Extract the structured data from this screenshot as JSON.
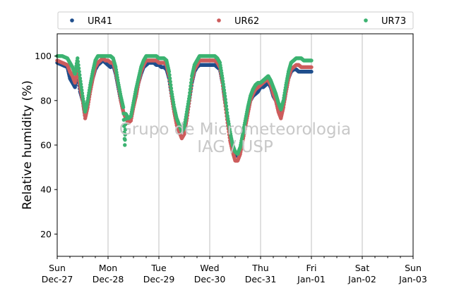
{
  "chart_data": {
    "type": "scatter",
    "ylabel": "Relative humidity (%)",
    "ylim": [
      10,
      110
    ],
    "yticks": [
      20,
      40,
      60,
      80,
      100
    ],
    "xlim_days": [
      0,
      7
    ],
    "xticks": [
      {
        "day": 0,
        "line1": "Sun",
        "line2": "Dec-27"
      },
      {
        "day": 1,
        "line1": "Mon",
        "line2": "Dec-28"
      },
      {
        "day": 2,
        "line1": "Tue",
        "line2": "Dec-29"
      },
      {
        "day": 3,
        "line1": "Wed",
        "line2": "Dec-30"
      },
      {
        "day": 4,
        "line1": "Thu",
        "line2": "Dec-31"
      },
      {
        "day": 5,
        "line1": "Fri",
        "line2": "Jan-01"
      },
      {
        "day": 6,
        "line1": "Sat",
        "line2": "Jan-02"
      },
      {
        "day": 7,
        "line1": "Sun",
        "line2": "Jan-03"
      }
    ],
    "grid": "x-major",
    "legend_placement": "top",
    "watermark": [
      "Grupo de Micrometeorologia",
      "IAG / USP"
    ],
    "series": [
      {
        "name": "UR41",
        "color": "#1f4e8c",
        "points": [
          [
            0,
            97
          ],
          [
            0.1,
            96
          ],
          [
            0.2,
            95
          ],
          [
            0.25,
            90
          ],
          [
            0.3,
            88
          ],
          [
            0.35,
            86
          ],
          [
            0.4,
            92
          ],
          [
            0.45,
            84
          ],
          [
            0.5,
            80
          ],
          [
            0.55,
            73
          ],
          [
            0.6,
            78
          ],
          [
            0.65,
            85
          ],
          [
            0.7,
            90
          ],
          [
            0.75,
            94
          ],
          [
            0.8,
            96
          ],
          [
            0.85,
            97
          ],
          [
            0.9,
            98
          ],
          [
            0.95,
            97
          ],
          [
            1.0,
            96
          ],
          [
            1.05,
            95
          ],
          [
            1.1,
            96
          ],
          [
            1.15,
            92
          ],
          [
            1.2,
            86
          ],
          [
            1.25,
            80
          ],
          [
            1.3,
            75
          ],
          [
            1.35,
            72
          ],
          [
            1.4,
            71
          ],
          [
            1.45,
            72
          ],
          [
            1.5,
            78
          ],
          [
            1.55,
            82
          ],
          [
            1.6,
            88
          ],
          [
            1.65,
            92
          ],
          [
            1.7,
            95
          ],
          [
            1.75,
            96
          ],
          [
            1.8,
            97
          ],
          [
            1.85,
            97
          ],
          [
            1.9,
            97
          ],
          [
            1.95,
            96
          ],
          [
            2.0,
            96
          ],
          [
            2.05,
            95
          ],
          [
            2.1,
            95
          ],
          [
            2.15,
            94
          ],
          [
            2.2,
            90
          ],
          [
            2.25,
            82
          ],
          [
            2.3,
            75
          ],
          [
            2.35,
            70
          ],
          [
            2.4,
            68
          ],
          [
            2.45,
            65
          ],
          [
            2.5,
            66
          ],
          [
            2.55,
            72
          ],
          [
            2.6,
            80
          ],
          [
            2.65,
            88
          ],
          [
            2.7,
            93
          ],
          [
            2.75,
            95
          ],
          [
            2.8,
            96
          ],
          [
            2.85,
            96
          ],
          [
            2.9,
            96
          ],
          [
            2.95,
            96
          ],
          [
            3.0,
            96
          ],
          [
            3.05,
            96
          ],
          [
            3.1,
            96
          ],
          [
            3.15,
            95
          ],
          [
            3.2,
            94
          ],
          [
            3.25,
            88
          ],
          [
            3.3,
            80
          ],
          [
            3.35,
            72
          ],
          [
            3.4,
            65
          ],
          [
            3.45,
            60
          ],
          [
            3.5,
            56
          ],
          [
            3.55,
            55
          ],
          [
            3.6,
            58
          ],
          [
            3.65,
            64
          ],
          [
            3.7,
            70
          ],
          [
            3.75,
            75
          ],
          [
            3.8,
            80
          ],
          [
            3.85,
            82
          ],
          [
            3.9,
            83
          ],
          [
            3.95,
            84
          ],
          [
            4.0,
            86
          ],
          [
            4.05,
            86
          ],
          [
            4.1,
            87
          ],
          [
            4.15,
            88
          ],
          [
            4.2,
            86
          ],
          [
            4.25,
            82
          ],
          [
            4.3,
            80
          ],
          [
            4.35,
            76
          ],
          [
            4.4,
            74
          ],
          [
            4.45,
            78
          ],
          [
            4.5,
            84
          ],
          [
            4.55,
            90
          ],
          [
            4.6,
            93
          ],
          [
            4.65,
            94
          ],
          [
            4.7,
            94
          ],
          [
            4.75,
            93
          ],
          [
            4.8,
            93
          ],
          [
            4.85,
            93
          ],
          [
            4.9,
            93
          ],
          [
            4.95,
            93
          ],
          [
            5.0,
            93
          ]
        ]
      },
      {
        "name": "UR62",
        "color": "#cd5c5c",
        "points": [
          [
            0,
            98
          ],
          [
            0.1,
            97
          ],
          [
            0.2,
            96
          ],
          [
            0.25,
            93
          ],
          [
            0.3,
            91
          ],
          [
            0.35,
            88
          ],
          [
            0.4,
            94
          ],
          [
            0.45,
            86
          ],
          [
            0.5,
            80
          ],
          [
            0.55,
            72
          ],
          [
            0.6,
            77
          ],
          [
            0.65,
            84
          ],
          [
            0.7,
            90
          ],
          [
            0.75,
            95
          ],
          [
            0.8,
            97
          ],
          [
            0.85,
            98
          ],
          [
            0.9,
            99
          ],
          [
            0.95,
            98
          ],
          [
            1.0,
            98
          ],
          [
            1.05,
            97
          ],
          [
            1.1,
            97
          ],
          [
            1.15,
            93
          ],
          [
            1.2,
            87
          ],
          [
            1.25,
            80
          ],
          [
            1.3,
            75
          ],
          [
            1.35,
            72
          ],
          [
            1.4,
            70
          ],
          [
            1.45,
            71
          ],
          [
            1.5,
            77
          ],
          [
            1.55,
            82
          ],
          [
            1.6,
            88
          ],
          [
            1.65,
            93
          ],
          [
            1.7,
            96
          ],
          [
            1.75,
            98
          ],
          [
            1.8,
            98
          ],
          [
            1.85,
            98
          ],
          [
            1.9,
            98
          ],
          [
            1.95,
            98
          ],
          [
            2.0,
            97
          ],
          [
            2.05,
            97
          ],
          [
            2.1,
            97
          ],
          [
            2.15,
            96
          ],
          [
            2.2,
            91
          ],
          [
            2.25,
            82
          ],
          [
            2.3,
            75
          ],
          [
            2.35,
            69
          ],
          [
            2.4,
            66
          ],
          [
            2.45,
            63
          ],
          [
            2.5,
            65
          ],
          [
            2.55,
            72
          ],
          [
            2.6,
            80
          ],
          [
            2.65,
            89
          ],
          [
            2.7,
            94
          ],
          [
            2.75,
            96
          ],
          [
            2.8,
            98
          ],
          [
            2.85,
            98
          ],
          [
            2.9,
            98
          ],
          [
            2.95,
            98
          ],
          [
            3.0,
            98
          ],
          [
            3.05,
            98
          ],
          [
            3.1,
            98
          ],
          [
            3.15,
            97
          ],
          [
            3.2,
            95
          ],
          [
            3.25,
            88
          ],
          [
            3.3,
            79
          ],
          [
            3.35,
            70
          ],
          [
            3.4,
            62
          ],
          [
            3.45,
            57
          ],
          [
            3.5,
            53
          ],
          [
            3.55,
            53
          ],
          [
            3.6,
            56
          ],
          [
            3.65,
            62
          ],
          [
            3.7,
            68
          ],
          [
            3.75,
            74
          ],
          [
            3.8,
            80
          ],
          [
            3.85,
            83
          ],
          [
            3.9,
            85
          ],
          [
            3.95,
            86
          ],
          [
            4.0,
            87
          ],
          [
            4.05,
            88
          ],
          [
            4.1,
            89
          ],
          [
            4.15,
            89
          ],
          [
            4.2,
            87
          ],
          [
            4.25,
            83
          ],
          [
            4.3,
            80
          ],
          [
            4.35,
            75
          ],
          [
            4.4,
            72
          ],
          [
            4.45,
            77
          ],
          [
            4.5,
            84
          ],
          [
            4.55,
            90
          ],
          [
            4.6,
            94
          ],
          [
            4.65,
            95
          ],
          [
            4.7,
            96
          ],
          [
            4.75,
            96
          ],
          [
            4.8,
            95
          ],
          [
            4.85,
            95
          ],
          [
            4.9,
            95
          ],
          [
            4.95,
            95
          ],
          [
            5.0,
            95
          ]
        ]
      },
      {
        "name": "UR73",
        "color": "#3cb371",
        "points": [
          [
            0,
            100
          ],
          [
            0.1,
            100
          ],
          [
            0.2,
            99
          ],
          [
            0.25,
            97
          ],
          [
            0.3,
            95
          ],
          [
            0.35,
            92
          ],
          [
            0.4,
            99
          ],
          [
            0.45,
            90
          ],
          [
            0.5,
            82
          ],
          [
            0.55,
            75
          ],
          [
            0.6,
            80
          ],
          [
            0.65,
            87
          ],
          [
            0.7,
            93
          ],
          [
            0.75,
            98
          ],
          [
            0.8,
            100
          ],
          [
            0.85,
            100
          ],
          [
            0.9,
            100
          ],
          [
            0.95,
            100
          ],
          [
            1.0,
            100
          ],
          [
            1.05,
            100
          ],
          [
            1.1,
            99
          ],
          [
            1.15,
            95
          ],
          [
            1.2,
            88
          ],
          [
            1.25,
            82
          ],
          [
            1.3,
            77
          ],
          [
            1.33,
            60
          ],
          [
            1.35,
            74
          ],
          [
            1.4,
            72
          ],
          [
            1.45,
            73
          ],
          [
            1.5,
            79
          ],
          [
            1.55,
            85
          ],
          [
            1.6,
            90
          ],
          [
            1.65,
            95
          ],
          [
            1.7,
            98
          ],
          [
            1.75,
            100
          ],
          [
            1.8,
            100
          ],
          [
            1.85,
            100
          ],
          [
            1.9,
            100
          ],
          [
            1.95,
            100
          ],
          [
            2.0,
            99
          ],
          [
            2.05,
            99
          ],
          [
            2.1,
            99
          ],
          [
            2.15,
            98
          ],
          [
            2.2,
            93
          ],
          [
            2.25,
            84
          ],
          [
            2.3,
            77
          ],
          [
            2.35,
            72
          ],
          [
            2.4,
            69
          ],
          [
            2.45,
            66
          ],
          [
            2.5,
            68
          ],
          [
            2.55,
            75
          ],
          [
            2.6,
            82
          ],
          [
            2.65,
            91
          ],
          [
            2.7,
            96
          ],
          [
            2.75,
            98
          ],
          [
            2.8,
            100
          ],
          [
            2.85,
            100
          ],
          [
            2.9,
            100
          ],
          [
            2.95,
            100
          ],
          [
            3.0,
            100
          ],
          [
            3.05,
            100
          ],
          [
            3.1,
            100
          ],
          [
            3.15,
            99
          ],
          [
            3.2,
            97
          ],
          [
            3.25,
            90
          ],
          [
            3.3,
            82
          ],
          [
            3.35,
            73
          ],
          [
            3.4,
            66
          ],
          [
            3.45,
            60
          ],
          [
            3.5,
            57
          ],
          [
            3.55,
            56
          ],
          [
            3.6,
            59
          ],
          [
            3.65,
            65
          ],
          [
            3.7,
            71
          ],
          [
            3.75,
            77
          ],
          [
            3.8,
            82
          ],
          [
            3.85,
            85
          ],
          [
            3.9,
            87
          ],
          [
            3.95,
            88
          ],
          [
            4.0,
            88
          ],
          [
            4.05,
            89
          ],
          [
            4.1,
            90
          ],
          [
            4.15,
            91
          ],
          [
            4.2,
            89
          ],
          [
            4.25,
            86
          ],
          [
            4.3,
            83
          ],
          [
            4.35,
            79
          ],
          [
            4.4,
            76
          ],
          [
            4.45,
            80
          ],
          [
            4.5,
            87
          ],
          [
            4.55,
            93
          ],
          [
            4.6,
            97
          ],
          [
            4.65,
            98
          ],
          [
            4.7,
            99
          ],
          [
            4.75,
            99
          ],
          [
            4.8,
            99
          ],
          [
            4.85,
            98
          ],
          [
            4.9,
            98
          ],
          [
            4.95,
            98
          ],
          [
            5.0,
            98
          ]
        ]
      }
    ]
  }
}
